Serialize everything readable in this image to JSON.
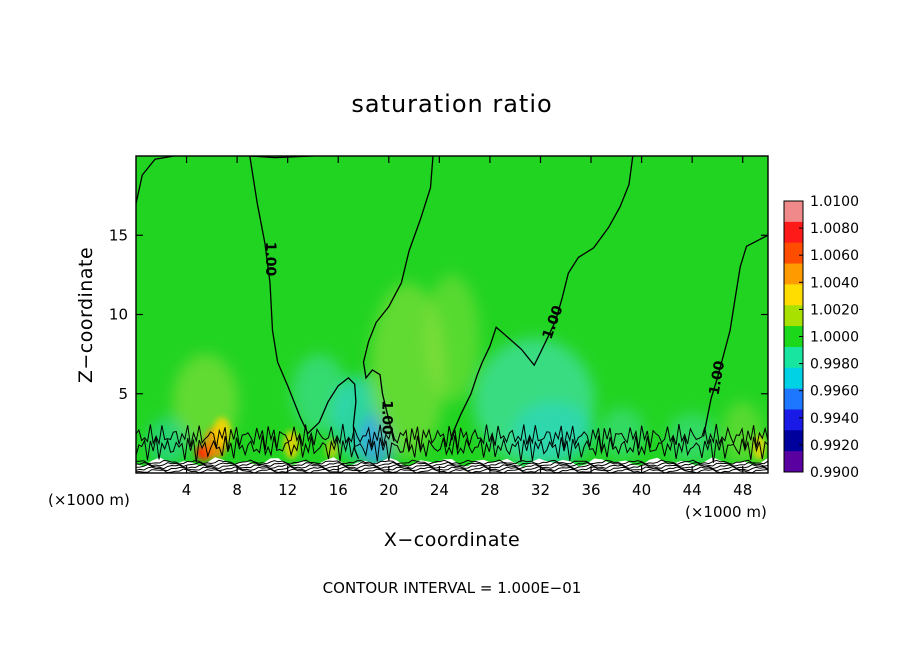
{
  "chart_data": {
    "type": "heatmap",
    "title": "saturation ratio",
    "xlabel": "X−coordinate",
    "ylabel": "Z−coordinate",
    "x_unit_left": "(×1000 m)",
    "x_unit_right": "(×1000 m)",
    "footer": "CONTOUR INTERVAL =  1.000E−01",
    "xlim": [
      0,
      50
    ],
    "ylim": [
      0,
      20
    ],
    "x_ticks": [
      4,
      8,
      12,
      16,
      20,
      24,
      28,
      32,
      36,
      40,
      44,
      48
    ],
    "x_tick_labels": [
      "4",
      "8",
      "12",
      "16",
      "20",
      "24",
      "28",
      "32",
      "36",
      "40",
      "44",
      "48"
    ],
    "y_ticks": [
      5,
      10,
      15
    ],
    "y_tick_labels": [
      "5",
      "10",
      "15"
    ],
    "contour_labels": [
      {
        "text": "1.00",
        "x": 10.6,
        "z": 13.5,
        "angle": 90
      },
      {
        "text": "1.00",
        "x": 19.8,
        "z": 3.5,
        "angle": 90
      },
      {
        "text": "1.00",
        "x": 33.0,
        "z": 9.5,
        "angle": -70
      },
      {
        "text": "1.00",
        "x": 46.0,
        "z": 6.0,
        "angle": -80
      }
    ],
    "colorbar": {
      "levels": [
        "1.0100",
        "1.0080",
        "1.0060",
        "1.0040",
        "1.0020",
        "1.0000",
        "0.9980",
        "0.9960",
        "0.9940",
        "0.9920",
        "0.9900"
      ],
      "colors": [
        "#f08a8a",
        "#ff1a1a",
        "#ff4d00",
        "#ff9a00",
        "#ffdd00",
        "#a8e000",
        "#1bd81b",
        "#18e6a0",
        "#00d2e6",
        "#1e78ff",
        "#1a1ae6",
        "#00009c",
        "#5a00a0"
      ]
    },
    "background_value": 1.0,
    "colors": {
      "field": "#22d422",
      "field_wet": "#96e040",
      "field_dry": "#40dfa0",
      "field_cyan": "#2cd6d0",
      "field_blue": "#3aa8e6",
      "hot_yellow": "#ffd400",
      "hot_orange": "#ff8800",
      "hot_red": "#ff2a00",
      "contour": "#000000"
    }
  }
}
